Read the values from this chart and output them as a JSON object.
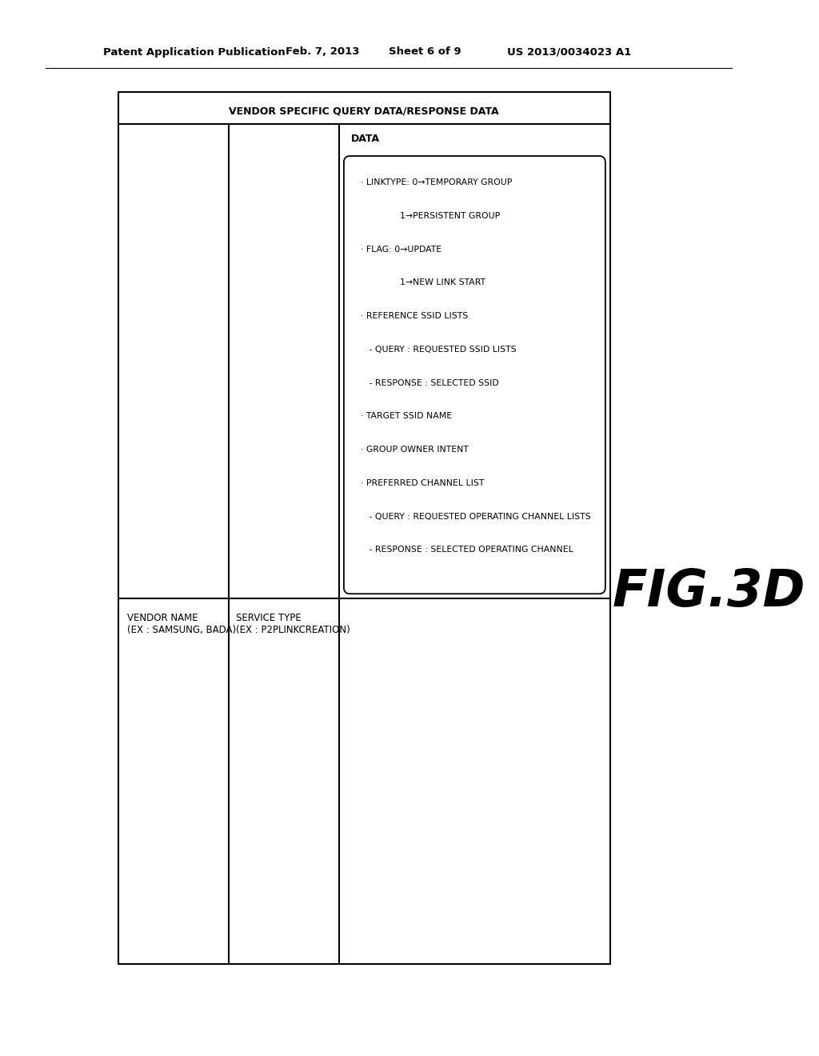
{
  "header_text": "Patent Application Publication",
  "header_date": "Feb. 7, 2013",
  "header_sheet": "Sheet 6 of 9",
  "header_patent": "US 2013/0034023 A1",
  "fig_label": "FIG.3D",
  "outer_title": "VENDOR SPECIFIC QUERY DATA/RESPONSE DATA",
  "col1_label": "VENDOR NAME\n(EX : SAMSUNG, BADA)",
  "col2_label": "SERVICE TYPE\n(EX : P2PLINKCREATION)",
  "col3_label": "DATA",
  "data_lines": [
    "· LINKTYPE: 0→TEMPORARY GROUP",
    "              1→PERSISTENT GROUP",
    "· FLAG: 0→UPDATE",
    "              1→NEW LINK START",
    "· REFERENCE SSID LISTS",
    "   - QUERY : REQUESTED SSID LISTS",
    "   - RESPONSE : SELECTED SSID",
    "· TARGET SSID NAME",
    "· GROUP OWNER INTENT",
    "· PREFERRED CHANNEL LIST",
    "   - QUERY : REQUESTED OPERATING CHANNEL LISTS",
    "   - RESPONSE : SELECTED OPERATING CHANNEL"
  ],
  "bg_color": "#ffffff",
  "border_color": "#000000",
  "text_color": "#000000"
}
